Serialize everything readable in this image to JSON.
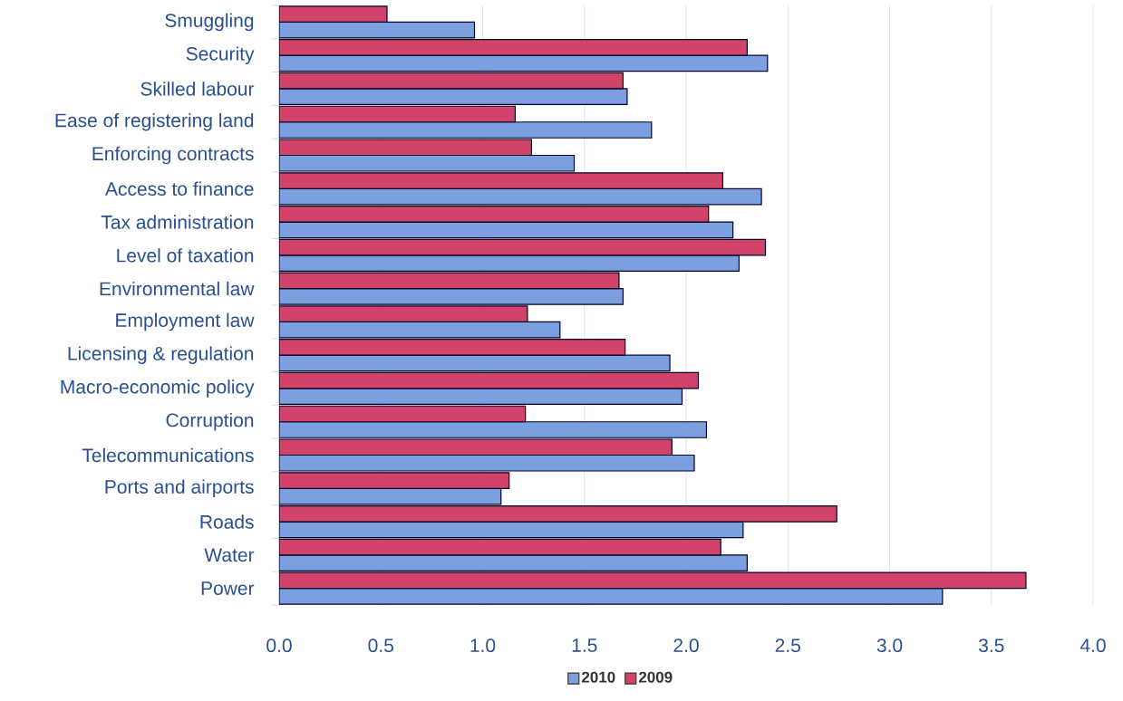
{
  "chart_data": {
    "type": "bar",
    "orientation": "horizontal",
    "categories": [
      "Smuggling",
      "Security",
      "Skilled labour",
      "Ease of registering land",
      "Enforcing contracts",
      "Access to finance",
      "Tax administration",
      "Level of taxation",
      "Environmental law",
      "Employment law",
      "Licensing & regulation",
      "Macro-economic policy",
      "Corruption",
      "Telecommunications",
      "Ports and airports",
      "Roads",
      "Water",
      "Power"
    ],
    "series": [
      {
        "name": "2010",
        "color": "#7c9fe0",
        "values": [
          0.96,
          2.4,
          1.71,
          1.83,
          1.45,
          2.37,
          2.23,
          2.26,
          1.69,
          1.38,
          1.92,
          1.98,
          2.1,
          2.04,
          1.09,
          2.28,
          2.3,
          3.26
        ]
      },
      {
        "name": "2009",
        "color": "#d2436a",
        "values": [
          0.53,
          2.3,
          1.69,
          1.16,
          1.24,
          2.18,
          2.11,
          2.39,
          1.67,
          1.22,
          1.7,
          2.06,
          1.21,
          1.93,
          1.13,
          2.74,
          2.17,
          3.67
        ]
      }
    ],
    "xlim": [
      0,
      4
    ],
    "xticks": [
      {
        "value": 0,
        "label": "0.0"
      },
      {
        "value": 0.5,
        "label": "0.5"
      },
      {
        "value": 1,
        "label": "1.0"
      },
      {
        "value": 1.5,
        "label": "1.5"
      },
      {
        "value": 2,
        "label": "2.0"
      },
      {
        "value": 2.5,
        "label": "2.5"
      },
      {
        "value": 3,
        "label": "3.0"
      },
      {
        "value": 3.5,
        "label": "3.5"
      },
      {
        "value": 4,
        "label": "4.0"
      }
    ],
    "grid": "x",
    "legend": "bottom"
  }
}
